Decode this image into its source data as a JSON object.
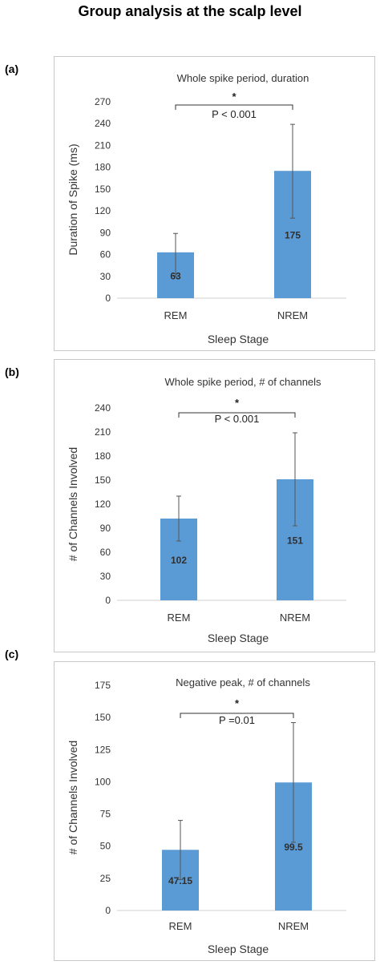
{
  "figure": {
    "title": "Group analysis at the scalp level",
    "bar_color": "#5b9bd5",
    "error_color": "#555555",
    "text_color": "#333333"
  },
  "chart_data": [
    {
      "panel_label": "(a)",
      "type": "bar",
      "title": "Whole spike period,  duration",
      "xlabel": "Sleep Stage",
      "ylabel": "Duration of Spike (ms)",
      "categories": [
        "REM",
        "NREM"
      ],
      "values": [
        63,
        175
      ],
      "value_labels": [
        "63",
        "175"
      ],
      "error_low": [
        30,
        110
      ],
      "error_high": [
        89,
        239
      ],
      "ylim": [
        0,
        270
      ],
      "yticks": [
        0,
        30,
        60,
        90,
        120,
        150,
        180,
        210,
        240,
        270
      ],
      "significance": {
        "star": "*",
        "text": "P < 0.001"
      },
      "grid": false,
      "legend": "none"
    },
    {
      "panel_label": "(b)",
      "type": "bar",
      "title": "Whole spike period,  # of channels",
      "xlabel": "Sleep Stage",
      "ylabel": "# of Channels Involved",
      "categories": [
        "REM",
        "NREM"
      ],
      "values": [
        102,
        151
      ],
      "value_labels": [
        "102",
        "151"
      ],
      "error_low": [
        74,
        93
      ],
      "error_high": [
        130,
        209
      ],
      "ylim": [
        0,
        240
      ],
      "yticks": [
        0,
        30,
        60,
        90,
        120,
        150,
        180,
        210,
        240
      ],
      "significance": {
        "star": "*",
        "text": "P < 0.001"
      },
      "grid": false,
      "legend": "none"
    },
    {
      "panel_label": "(c)",
      "type": "bar",
      "title": "Negative peak, # of channels",
      "xlabel": "Sleep Stage",
      "ylabel": "# of Channels Involved",
      "categories": [
        "REM",
        "NREM"
      ],
      "values": [
        47.15,
        99.5
      ],
      "value_labels": [
        "47.15",
        "99.5"
      ],
      "error_low": [
        24,
        53
      ],
      "error_high": [
        70,
        146
      ],
      "ylim": [
        0,
        175
      ],
      "yticks": [
        0,
        25,
        50,
        75,
        100,
        125,
        150,
        175
      ],
      "significance": {
        "star": "*",
        "text": "P =0.01"
      },
      "grid": false,
      "legend": "none"
    }
  ]
}
